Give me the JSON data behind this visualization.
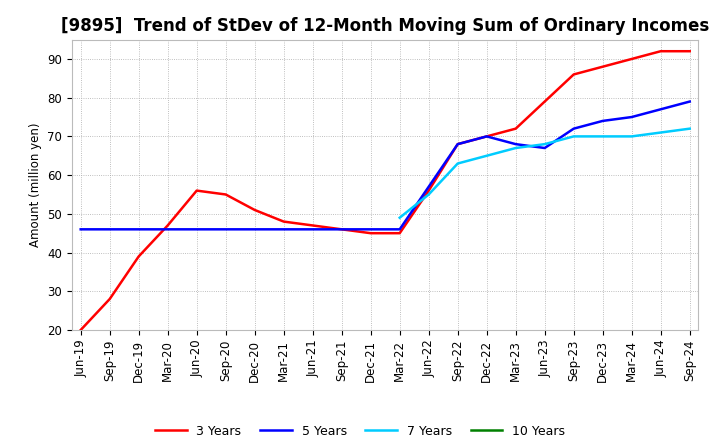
{
  "title": "[9895]  Trend of StDev of 12-Month Moving Sum of Ordinary Incomes",
  "ylabel": "Amount (million yen)",
  "ylim": [
    20,
    95
  ],
  "yticks": [
    20,
    30,
    40,
    50,
    60,
    70,
    80,
    90
  ],
  "legend_labels": [
    "3 Years",
    "5 Years",
    "7 Years",
    "10 Years"
  ],
  "legend_colors": [
    "#ff0000",
    "#0000ff",
    "#00ccff",
    "#008000"
  ],
  "x_labels": [
    "Jun-19",
    "Sep-19",
    "Dec-19",
    "Mar-20",
    "Jun-20",
    "Sep-20",
    "Dec-20",
    "Mar-21",
    "Jun-21",
    "Sep-21",
    "Dec-21",
    "Mar-22",
    "Jun-22",
    "Sep-22",
    "Dec-22",
    "Mar-23",
    "Jun-23",
    "Sep-23",
    "Dec-23",
    "Mar-24",
    "Jun-24",
    "Sep-24"
  ],
  "series_3y": [
    20,
    28,
    39,
    47,
    56,
    55,
    51,
    48,
    47,
    46,
    45,
    45,
    56,
    68,
    70,
    72,
    79,
    86,
    88,
    90,
    92,
    92
  ],
  "series_5y": [
    46,
    46,
    46,
    46,
    46,
    46,
    46,
    46,
    46,
    46,
    46,
    46,
    57,
    68,
    70,
    68,
    67,
    72,
    74,
    75,
    77,
    79
  ],
  "series_7y": [
    null,
    null,
    null,
    null,
    null,
    null,
    null,
    null,
    null,
    null,
    null,
    49,
    55,
    63,
    65,
    67,
    68,
    70,
    70,
    70,
    71,
    72
  ],
  "series_10y": [
    null,
    null,
    null,
    null,
    null,
    null,
    null,
    null,
    null,
    null,
    null,
    null,
    null,
    null,
    null,
    null,
    null,
    null,
    null,
    null,
    null,
    null
  ],
  "background_color": "#ffffff",
  "grid_color": "#aaaaaa",
  "title_fontsize": 12,
  "axis_fontsize": 8.5,
  "legend_fontsize": 9
}
